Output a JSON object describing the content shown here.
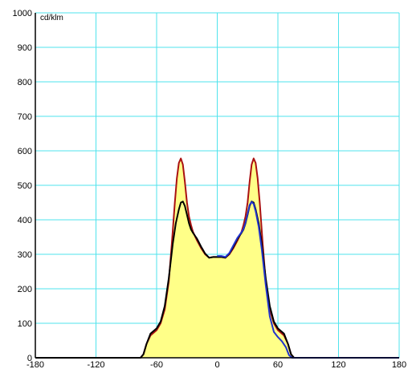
{
  "chart_data": {
    "type": "line",
    "title": "",
    "xlabel": "",
    "ylabel": "",
    "unit_label": "cd/klm",
    "xlim": [
      -180,
      180
    ],
    "ylim": [
      0,
      1000
    ],
    "x_ticks": [
      -180,
      -120,
      -60,
      0,
      60,
      120,
      180
    ],
    "y_ticks": [
      0,
      100,
      200,
      300,
      400,
      500,
      600,
      700,
      800,
      900,
      1000
    ],
    "grid": true,
    "colors": {
      "grid": "#4fe3ec",
      "fill": "#ffff88",
      "series_red": "#aa1111",
      "series_black": "#000000",
      "series_blue": "#2233cc"
    },
    "series": [
      {
        "color": "#aa1111",
        "filled": true,
        "x": [
          -180,
          -76,
          -73,
          -70,
          -66,
          -60,
          -56,
          -52,
          -48,
          -45,
          -42,
          -40,
          -38,
          -36,
          -34,
          -32,
          -30,
          -28,
          -26,
          -24,
          -20,
          -16,
          -12,
          -8,
          -4,
          0,
          4,
          8,
          12,
          16,
          20,
          24,
          26,
          28,
          30,
          32,
          34,
          36,
          38,
          40,
          42,
          45,
          48,
          52,
          56,
          60,
          66,
          70,
          73,
          76,
          180
        ],
        "y": [
          0,
          0,
          10,
          40,
          65,
          80,
          100,
          140,
          220,
          330,
          450,
          520,
          565,
          578,
          560,
          510,
          450,
          410,
          385,
          365,
          340,
          318,
          300,
          290,
          292,
          292,
          292,
          290,
          300,
          318,
          340,
          365,
          385,
          410,
          450,
          510,
          560,
          578,
          565,
          520,
          450,
          330,
          220,
          140,
          100,
          80,
          65,
          40,
          10,
          0,
          0
        ]
      },
      {
        "color": "#000000",
        "filled": false,
        "x": [
          -180,
          -76,
          -73,
          -70,
          -66,
          -60,
          -56,
          -52,
          -48,
          -44,
          -41,
          -38,
          -36,
          -34,
          -32,
          -30,
          -28,
          -26,
          -24,
          -20,
          -16,
          -12,
          -8,
          -4,
          0,
          4,
          8,
          12,
          16,
          20,
          24,
          26,
          28,
          30,
          32,
          34,
          36,
          38,
          41,
          44,
          48,
          52,
          56,
          60,
          66,
          70,
          73,
          76,
          180
        ],
        "y": [
          0,
          0,
          10,
          40,
          70,
          85,
          105,
          150,
          230,
          330,
          390,
          430,
          450,
          453,
          440,
          415,
          390,
          372,
          362,
          345,
          322,
          302,
          290,
          292,
          292,
          292,
          290,
          302,
          322,
          345,
          362,
          372,
          390,
          415,
          440,
          453,
          450,
          430,
          390,
          330,
          230,
          150,
          105,
          85,
          70,
          40,
          10,
          0,
          0
        ]
      },
      {
        "color": "#2233cc",
        "filled": false,
        "x": [
          0,
          4,
          8,
          12,
          16,
          20,
          24,
          26,
          28,
          30,
          32,
          34,
          36,
          38,
          41,
          44,
          48,
          52,
          56,
          60,
          64,
          68,
          71,
          74,
          180
        ],
        "y": [
          295,
          295,
          292,
          304,
          326,
          348,
          364,
          374,
          392,
          418,
          443,
          452,
          446,
          425,
          380,
          315,
          210,
          120,
          75,
          60,
          48,
          30,
          8,
          0,
          0
        ]
      }
    ]
  }
}
